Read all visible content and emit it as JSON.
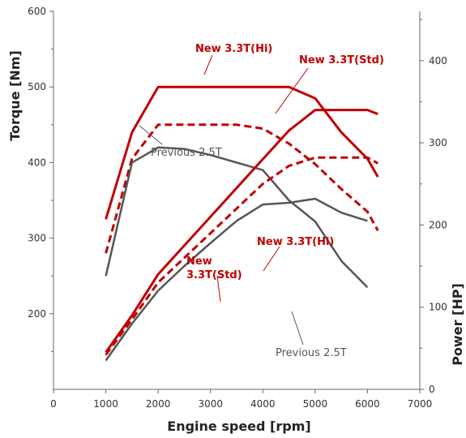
{
  "chart_data": {
    "type": "line",
    "xlabel": "Engine speed [rpm]",
    "x_ticks": [
      "0",
      "1000",
      "2000",
      "3000",
      "4000",
      "5000",
      "6000",
      "7000"
    ],
    "xlim": [
      0,
      7000
    ],
    "left_axis": {
      "label": "Torque [Nm]",
      "ticks": [
        "200",
        "300",
        "400",
        "500",
        "600"
      ],
      "range": [
        100,
        600
      ]
    },
    "right_axis": {
      "label": "Power [HP]",
      "ticks": [
        "0",
        "100",
        "200",
        "300",
        "400"
      ],
      "range": [
        0,
        460
      ]
    },
    "grid": false,
    "series": [
      {
        "name": "New 3.3T(Hi)",
        "axis": "left",
        "style": "solid",
        "color": "#c00000",
        "x": [
          1000,
          1500,
          2000,
          2500,
          3000,
          3500,
          4000,
          4500,
          5000,
          5500,
          6000,
          6200
        ],
        "y": [
          325,
          440,
          500,
          500,
          500,
          500,
          500,
          500,
          485,
          440,
          405,
          381
        ]
      },
      {
        "name": "New 3.3T(Std)",
        "axis": "left",
        "style": "dashed",
        "color": "#c00000",
        "x": [
          1000,
          1500,
          2000,
          2500,
          3000,
          3500,
          4000,
          4500,
          5000,
          5500,
          6000,
          6200
        ],
        "y": [
          280,
          405,
          450,
          450,
          450,
          450,
          445,
          425,
          398,
          365,
          335,
          310
        ]
      },
      {
        "name": "Previous 2.5T",
        "axis": "left",
        "style": "solid",
        "color": "#555555",
        "x": [
          1000,
          1500,
          2000,
          2500,
          3000,
          3500,
          4000,
          4500,
          5000,
          5500,
          6000
        ],
        "y": [
          250,
          400,
          420,
          418,
          410,
          400,
          390,
          350,
          322,
          270,
          235
        ]
      },
      {
        "name": "New 3.3T(Hi)",
        "axis": "right",
        "style": "solid",
        "color": "#c00000",
        "x": [
          1000,
          1500,
          2000,
          2500,
          3000,
          3500,
          4000,
          4500,
          5000,
          5500,
          6000,
          6200
        ],
        "y": [
          45,
          90,
          140,
          175,
          210,
          245,
          280,
          315,
          340,
          340,
          340,
          335
        ]
      },
      {
        "name": "New 3.3T(Std)",
        "axis": "right",
        "style": "dashed",
        "color": "#c00000",
        "x": [
          1000,
          1500,
          2000,
          2500,
          3000,
          3500,
          4000,
          4500,
          5000,
          5500,
          6000,
          6200
        ],
        "y": [
          42,
          85,
          130,
          160,
          190,
          220,
          250,
          272,
          282,
          282,
          282,
          275
        ]
      },
      {
        "name": "Previous 2.5T",
        "axis": "right",
        "style": "solid",
        "color": "#555555",
        "x": [
          1000,
          1500,
          2000,
          2500,
          3000,
          3500,
          4000,
          4500,
          5000,
          5500,
          6000
        ],
        "y": [
          35,
          80,
          120,
          150,
          178,
          205,
          225,
          227,
          232,
          215,
          205
        ]
      }
    ],
    "annotations": [
      {
        "text": "New 3.3T(Hi)",
        "color": "red"
      },
      {
        "text": "New 3.3T(Std)",
        "color": "red"
      },
      {
        "text": "Previous 2.5T",
        "color": "gray"
      },
      {
        "text": "New 3.3T(Hi)",
        "color": "red"
      },
      {
        "text": "New",
        "color": "red"
      },
      {
        "text": "3.3T(Std)",
        "color": "red"
      },
      {
        "text": "Previous 2.5T",
        "color": "gray"
      }
    ]
  }
}
